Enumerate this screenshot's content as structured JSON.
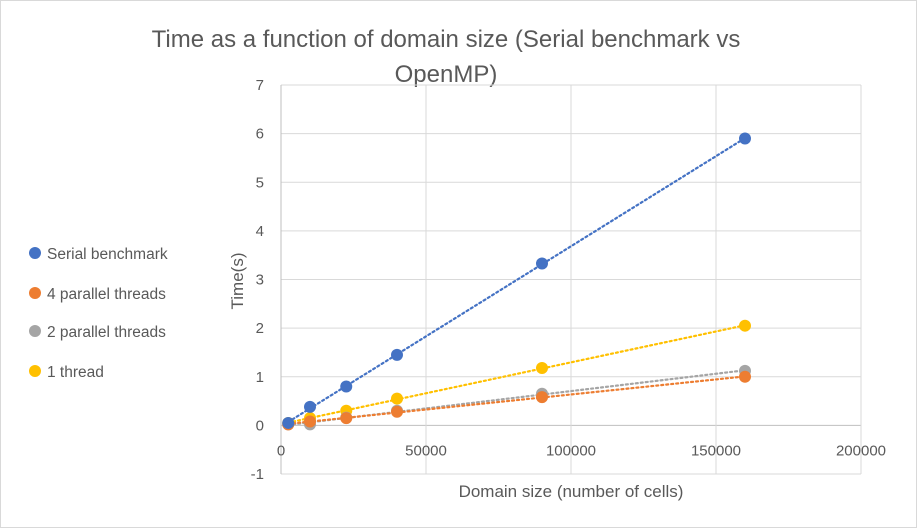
{
  "chart_data": {
    "type": "scatter",
    "title_lines": [
      "Time as a function of domain size (Serial benchmark vs",
      "OpenMP)"
    ],
    "xlabel": "Domain size (number of cells)",
    "ylabel": "Time(s)",
    "xlim": [
      0,
      200000
    ],
    "ylim": [
      -1,
      7
    ],
    "x_ticks": [
      0,
      50000,
      100000,
      150000,
      200000
    ],
    "y_ticks": [
      -1,
      0,
      1,
      2,
      3,
      4,
      5,
      6,
      7
    ],
    "grid": true,
    "legend_position": "left",
    "trendlines": "linear, dotted",
    "series": [
      {
        "name": "Serial benchmark",
        "color": "#4472c4",
        "x": [
          2500,
          10000,
          22500,
          40000,
          90000,
          160000
        ],
        "y": [
          0.05,
          0.38,
          0.8,
          1.45,
          3.33,
          5.9
        ]
      },
      {
        "name": "4 parallel threads",
        "color": "#ed7d31",
        "x": [
          2500,
          10000,
          22500,
          40000,
          90000,
          160000
        ],
        "y": [
          0.02,
          0.08,
          0.15,
          0.28,
          0.58,
          1.0
        ]
      },
      {
        "name": "2 parallel threads",
        "color": "#a5a5a5",
        "x": [
          2500,
          10000,
          22500,
          40000,
          90000,
          160000
        ],
        "y": [
          0.02,
          0.02,
          0.16,
          0.3,
          0.65,
          1.12
        ]
      },
      {
        "name": "1 thread",
        "color": "#ffc000",
        "x": [
          2500,
          10000,
          22500,
          40000,
          90000,
          160000
        ],
        "y": [
          0.05,
          0.15,
          0.3,
          0.55,
          1.18,
          2.05
        ]
      }
    ]
  }
}
